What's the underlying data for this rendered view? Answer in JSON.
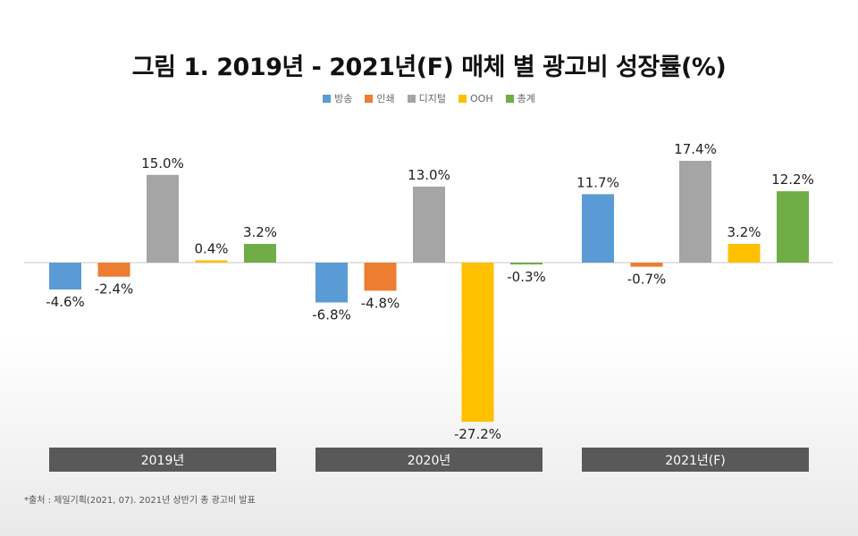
{
  "chart_data": {
    "type": "bar",
    "title": "그림 1. 2019년 - 2021년(F) 매체 별 광고비 성장률(%)",
    "categories": [
      "2019년",
      "2020년",
      "2021년(F)"
    ],
    "series": [
      {
        "name": "방송",
        "color": "#5b9bd5",
        "values": [
          -4.6,
          -6.8,
          11.7
        ],
        "labels": [
          "-4.6%",
          "-6.8%",
          "11.7%"
        ]
      },
      {
        "name": "인쇄",
        "color": "#ed7d31",
        "values": [
          -2.4,
          -4.8,
          -0.7
        ],
        "labels": [
          "-2.4%",
          "-4.8%",
          "-0.7%"
        ]
      },
      {
        "name": "디지털",
        "color": "#a5a5a5",
        "values": [
          15.0,
          13.0,
          17.4
        ],
        "labels": [
          "15.0%",
          "13.0%",
          "17.4%"
        ]
      },
      {
        "name": "OOH",
        "color": "#ffc000",
        "values": [
          0.4,
          -27.2,
          3.2
        ],
        "labels": [
          "0.4%",
          "-27.2%",
          "3.2%"
        ]
      },
      {
        "name": "총계",
        "color": "#70ad47",
        "values": [
          3.2,
          -0.3,
          12.2
        ],
        "labels": [
          "3.2%",
          "-0.3%",
          "12.2%"
        ]
      }
    ],
    "legend_position": "top-center",
    "grid": false
  },
  "source_note": "*출처 : 제일기획(2021, 07). 2021년 상반기 총 광고비 발표",
  "colors": {
    "category_box": "#595959",
    "axis": "#c8c8c8"
  }
}
